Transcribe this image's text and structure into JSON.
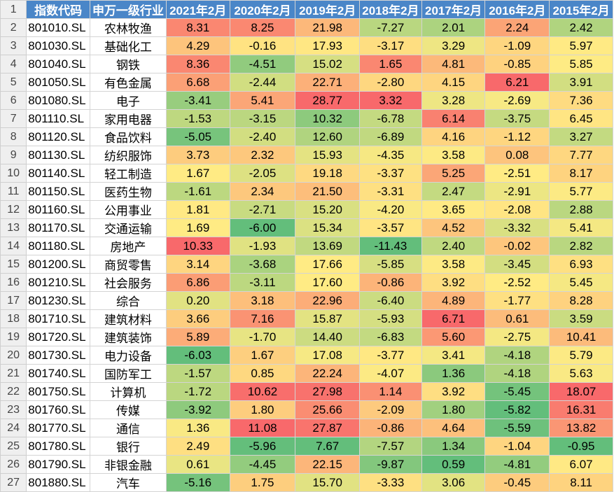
{
  "sheet": {
    "header_row_number": "1",
    "headers": [
      "指数代码",
      "申万一级行业",
      "2021年2月",
      "2020年2月",
      "2019年2月",
      "2018年2月",
      "2017年2月",
      "2016年2月",
      "2015年2月"
    ],
    "header_color": "#4a86c8",
    "colorscale": {
      "low": "#63be7b",
      "mid": "#ffeb84",
      "high": "#f8696b"
    },
    "rows": [
      {
        "n": "2",
        "code": "801010.SL",
        "name": "农林牧渔",
        "values": [
          "8.31",
          "8.25",
          "21.98",
          "-7.27",
          "2.01",
          "2.24",
          "2.42"
        ]
      },
      {
        "n": "3",
        "code": "801030.SL",
        "name": "基础化工",
        "values": [
          "4.29",
          "-0.16",
          "17.93",
          "-3.17",
          "3.29",
          "-1.09",
          "5.97"
        ]
      },
      {
        "n": "4",
        "code": "801040.SL",
        "name": "钢铁",
        "values": [
          "8.36",
          "-4.51",
          "15.02",
          "1.65",
          "4.81",
          "-0.85",
          "5.85"
        ]
      },
      {
        "n": "5",
        "code": "801050.SL",
        "name": "有色金属",
        "values": [
          "6.68",
          "-2.44",
          "22.71",
          "-2.80",
          "4.15",
          "6.21",
          "3.91"
        ]
      },
      {
        "n": "6",
        "code": "801080.SL",
        "name": "电子",
        "values": [
          "-3.41",
          "5.41",
          "28.77",
          "3.32",
          "3.28",
          "-2.69",
          "7.36"
        ]
      },
      {
        "n": "7",
        "code": "801110.SL",
        "name": "家用电器",
        "values": [
          "-1.53",
          "-3.15",
          "10.32",
          "-6.78",
          "6.14",
          "-3.75",
          "6.45"
        ]
      },
      {
        "n": "8",
        "code": "801120.SL",
        "name": "食品饮料",
        "values": [
          "-5.05",
          "-2.40",
          "12.60",
          "-6.89",
          "4.16",
          "-1.12",
          "3.27"
        ]
      },
      {
        "n": "9",
        "code": "801130.SL",
        "name": "纺织服饰",
        "values": [
          "3.73",
          "2.32",
          "15.93",
          "-4.35",
          "3.58",
          "0.08",
          "7.77"
        ]
      },
      {
        "n": "10",
        "code": "801140.SL",
        "name": "轻工制造",
        "values": [
          "1.67",
          "-2.05",
          "19.18",
          "-3.37",
          "5.25",
          "-2.51",
          "8.17"
        ]
      },
      {
        "n": "11",
        "code": "801150.SL",
        "name": "医药生物",
        "values": [
          "-1.61",
          "2.34",
          "21.50",
          "-3.31",
          "2.47",
          "-2.91",
          "5.77"
        ]
      },
      {
        "n": "12",
        "code": "801160.SL",
        "name": "公用事业",
        "values": [
          "1.81",
          "-2.71",
          "15.20",
          "-4.20",
          "3.65",
          "-2.08",
          "2.88"
        ]
      },
      {
        "n": "13",
        "code": "801170.SL",
        "name": "交通运输",
        "values": [
          "1.69",
          "-6.00",
          "15.34",
          "-3.57",
          "4.52",
          "-3.32",
          "5.41"
        ]
      },
      {
        "n": "14",
        "code": "801180.SL",
        "name": "房地产",
        "values": [
          "10.33",
          "-1.93",
          "13.69",
          "-11.43",
          "2.40",
          "-0.02",
          "2.82"
        ]
      },
      {
        "n": "15",
        "code": "801200.SL",
        "name": "商贸零售",
        "values": [
          "3.14",
          "-3.68",
          "17.66",
          "-5.85",
          "3.58",
          "-3.45",
          "6.93"
        ]
      },
      {
        "n": "16",
        "code": "801210.SL",
        "name": "社会服务",
        "values": [
          "6.86",
          "-3.11",
          "17.60",
          "-0.86",
          "3.92",
          "-2.52",
          "5.45"
        ]
      },
      {
        "n": "17",
        "code": "801230.SL",
        "name": "综合",
        "values": [
          "0.20",
          "3.18",
          "22.96",
          "-6.40",
          "4.89",
          "-1.77",
          "8.28"
        ]
      },
      {
        "n": "18",
        "code": "801710.SL",
        "name": "建筑材料",
        "values": [
          "3.66",
          "7.16",
          "15.87",
          "-5.93",
          "6.71",
          "0.61",
          "3.59"
        ]
      },
      {
        "n": "19",
        "code": "801720.SL",
        "name": "建筑装饰",
        "values": [
          "5.89",
          "-1.70",
          "14.40",
          "-6.83",
          "5.60",
          "-2.75",
          "10.41"
        ]
      },
      {
        "n": "20",
        "code": "801730.SL",
        "name": "电力设备",
        "values": [
          "-6.03",
          "1.67",
          "17.08",
          "-3.77",
          "3.41",
          "-4.18",
          "5.79"
        ]
      },
      {
        "n": "21",
        "code": "801740.SL",
        "name": "国防军工",
        "values": [
          "-1.57",
          "0.85",
          "22.24",
          "-4.07",
          "1.36",
          "-4.18",
          "5.63"
        ]
      },
      {
        "n": "22",
        "code": "801750.SL",
        "name": "计算机",
        "values": [
          "-1.72",
          "10.62",
          "27.98",
          "1.14",
          "3.92",
          "-5.45",
          "18.07"
        ]
      },
      {
        "n": "23",
        "code": "801760.SL",
        "name": "传媒",
        "values": [
          "-3.92",
          "1.80",
          "25.66",
          "-2.09",
          "1.80",
          "-5.82",
          "16.31"
        ]
      },
      {
        "n": "24",
        "code": "801770.SL",
        "name": "通信",
        "values": [
          "1.36",
          "11.08",
          "27.87",
          "-0.86",
          "4.64",
          "-5.59",
          "13.82"
        ]
      },
      {
        "n": "25",
        "code": "801780.SL",
        "name": "银行",
        "values": [
          "2.49",
          "-5.96",
          "7.67",
          "-7.57",
          "1.34",
          "-1.04",
          "-0.95"
        ]
      },
      {
        "n": "26",
        "code": "801790.SL",
        "name": "非银金融",
        "values": [
          "0.61",
          "-4.45",
          "22.15",
          "-9.87",
          "0.59",
          "-4.81",
          "6.07"
        ]
      },
      {
        "n": "27",
        "code": "801880.SL",
        "name": "汽车",
        "values": [
          "-5.16",
          "1.75",
          "15.70",
          "-3.33",
          "3.06",
          "-0.45",
          "8.11"
        ]
      }
    ]
  }
}
